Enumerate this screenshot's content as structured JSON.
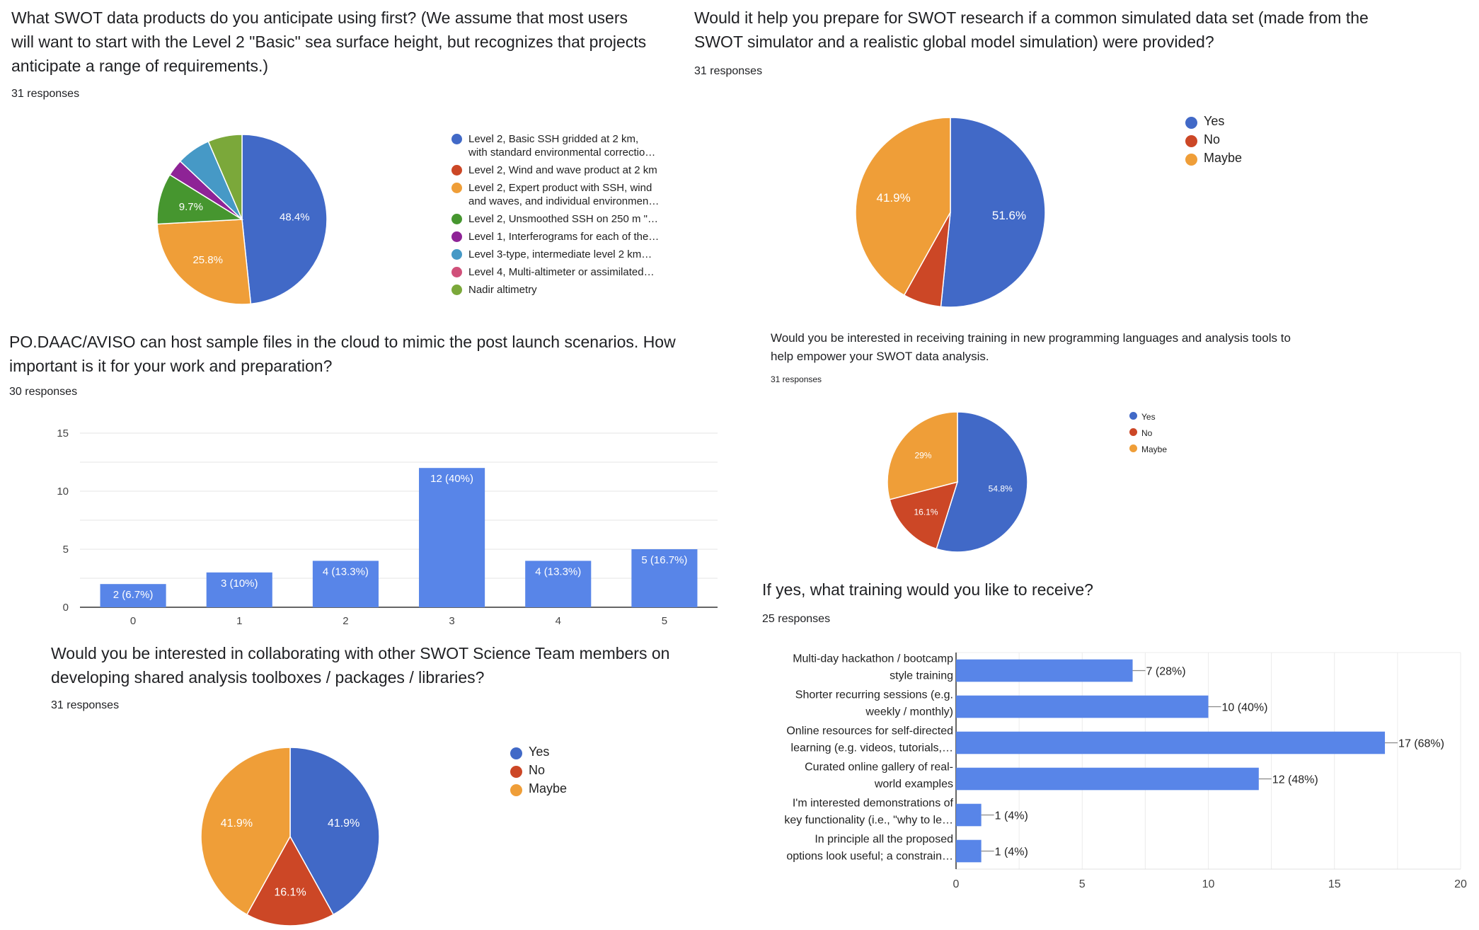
{
  "colors": {
    "blue": "#4169c7",
    "red": "#cc4726",
    "orange": "#ef9e38",
    "green": "#46962f",
    "purple": "#8e2396",
    "lightblue": "#4699c6",
    "pink": "#d0507a",
    "olive": "#7ba83a",
    "bar": "#5885e8"
  },
  "chart_data": [
    {
      "id": "q1",
      "type": "pie",
      "title": "What SWOT data products do you anticipate using first? (We assume that most users will want to start with the Level 2 \"Basic\" sea surface height, but recognizes that projects anticipate a range of requirements.)",
      "responses": "31 responses",
      "categories": [
        "Level 2, Basic SSH gridded at 2 km, with standard environmental correctio…",
        "Level 2, Wind and wave product at 2 km",
        "Level 2, Expert product with SSH, wind and waves, and individual environmen…",
        "Level 2, Unsmoothed SSH on 250 m \"…",
        "Level 1, Interferograms for each of the…",
        "Level 3-type, intermediate level 2 km…",
        "Level 4, Multi-altimeter or assimilated…",
        "Nadir altimetry"
      ],
      "legend_lines": [
        [
          "Level 2, Basic SSH gridded at 2 km,",
          "with standard environmental correctio…"
        ],
        [
          "Level 2, Wind and wave product at 2 km"
        ],
        [
          "Level 2, Expert product with SSH, wind",
          "and waves, and individual environmen…"
        ],
        [
          "Level 2, Unsmoothed SSH on 250 m \"…"
        ],
        [
          "Level 1, Interferograms for each of the…"
        ],
        [
          "Level 3-type, intermediate level 2 km…"
        ],
        [
          "Level 4, Multi-altimeter or assimilated…"
        ],
        [
          "Nadir altimetry"
        ]
      ],
      "values": [
        48.4,
        0,
        25.8,
        9.7,
        3.2,
        6.5,
        0,
        6.5
      ],
      "labels": [
        "48.4%",
        "",
        "25.8%",
        "9.7%",
        "",
        "",
        "",
        ""
      ],
      "color_keys": [
        "blue",
        "red",
        "orange",
        "green",
        "purple",
        "lightblue",
        "pink",
        "olive"
      ],
      "legend_position": "right"
    },
    {
      "id": "q2",
      "type": "pie",
      "title": "Would it help you prepare for SWOT research if a common simulated data set (made from the SWOT simulator and a realistic global model simulation) were provided?",
      "responses": "31 responses",
      "categories": [
        "Yes",
        "No",
        "Maybe"
      ],
      "values": [
        51.6,
        6.5,
        41.9
      ],
      "labels": [
        "51.6%",
        "",
        "41.9%"
      ],
      "color_keys": [
        "blue",
        "red",
        "orange"
      ],
      "legend_position": "right"
    },
    {
      "id": "q3",
      "type": "bar",
      "title": "PO.DAAC/AVISO can host sample files in the cloud to mimic the post launch scenarios. How important is it for your work and preparation?",
      "responses": "30 responses",
      "categories": [
        "0",
        "1",
        "2",
        "3",
        "4",
        "5"
      ],
      "values": [
        2,
        3,
        4,
        12,
        4,
        5
      ],
      "data_labels": [
        "2 (6.7%)",
        "3 (10%)",
        "4 (13.3%)",
        "12 (40%)",
        "4 (13.3%)",
        "5 (16.7%)"
      ],
      "ylim": [
        0,
        15
      ],
      "yticks": [
        "0",
        "5",
        "10",
        "15"
      ],
      "grid": true
    },
    {
      "id": "q4",
      "type": "pie",
      "title": "Would you be interested in receiving training in new programming languages and analysis tools to help empower your SWOT data analysis.",
      "responses": "31 responses",
      "categories": [
        "Yes",
        "No",
        "Maybe"
      ],
      "values": [
        54.8,
        16.1,
        29
      ],
      "labels": [
        "54.8%",
        "16.1%",
        "29%"
      ],
      "color_keys": [
        "blue",
        "red",
        "orange"
      ],
      "legend_position": "right"
    },
    {
      "id": "q5",
      "type": "pie",
      "title": "Would you be interested in collaborating with other SWOT Science Team members on developing shared analysis toolboxes / packages / libraries?",
      "responses": "31 responses",
      "categories": [
        "Yes",
        "No",
        "Maybe"
      ],
      "values": [
        41.9,
        16.1,
        41.9
      ],
      "labels": [
        "41.9%",
        "16.1%",
        "41.9%"
      ],
      "color_keys": [
        "blue",
        "red",
        "orange"
      ],
      "legend_position": "right"
    },
    {
      "id": "q6",
      "type": "bar",
      "orientation": "horizontal",
      "title": "If yes, what training would you like to receive?",
      "responses": "25 responses",
      "categories": [
        [
          "Multi-day hackathon / bootcamp",
          "style training"
        ],
        [
          "Shorter recurring sessions (e.g.",
          "weekly / monthly)"
        ],
        [
          "Online resources for self-directed",
          "learning (e.g. videos, tutorials,…"
        ],
        [
          "Curated online gallery of real-",
          "world examples"
        ],
        [
          "I'm interested demonstrations of",
          "key functionality (i.e., \"why to le…"
        ],
        [
          "In principle all the proposed",
          "options look useful; a constrain…"
        ]
      ],
      "values": [
        7,
        10,
        17,
        12,
        1,
        1
      ],
      "data_labels": [
        "7 (28%)",
        "10 (40%)",
        "17 (68%)",
        "12 (48%)",
        "1 (4%)",
        "1 (4%)"
      ],
      "xlim": [
        0,
        20
      ],
      "xticks": [
        "0",
        "5",
        "10",
        "15",
        "20"
      ],
      "grid": true
    }
  ]
}
